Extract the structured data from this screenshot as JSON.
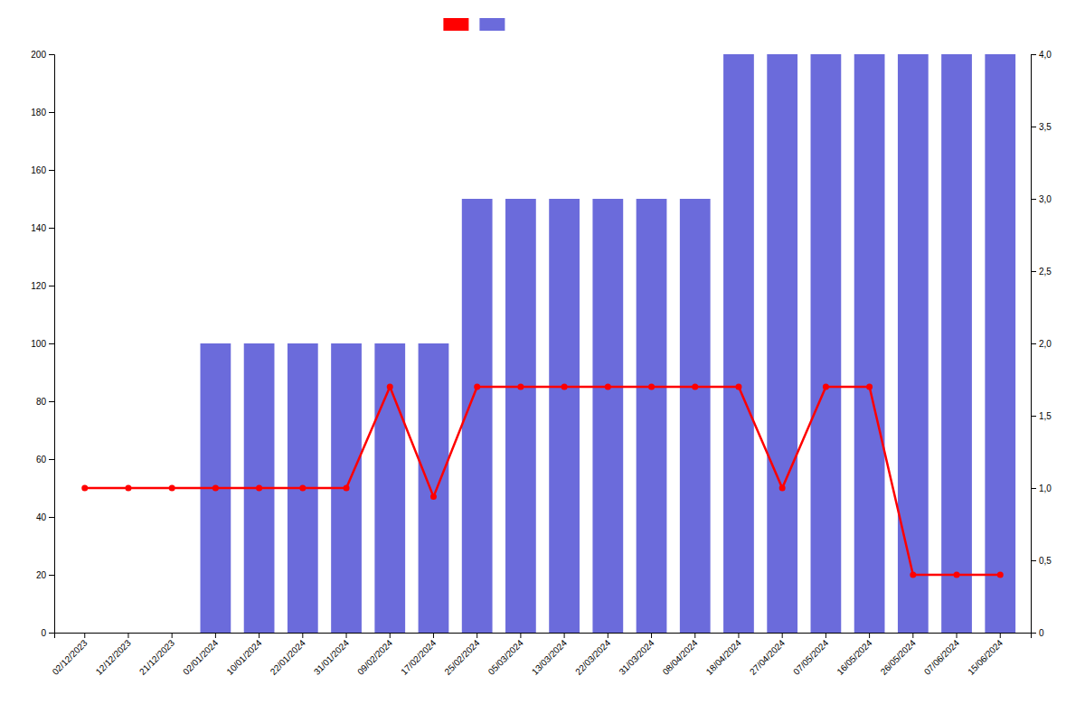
{
  "chart_data": {
    "type": "bar",
    "categories": [
      "02/12/2023",
      "12/12/2023",
      "21/12/2023",
      "02/01/2024",
      "10/01/2024",
      "22/01/2024",
      "31/01/2024",
      "09/02/2024",
      "17/02/2024",
      "25/02/2024",
      "05/03/2024",
      "13/03/2024",
      "22/03/2024",
      "31/03/2024",
      "08/04/2024",
      "18/04/2024",
      "27/04/2024",
      "07/05/2024",
      "16/05/2024",
      "26/05/2024",
      "07/06/2024",
      "15/06/2024"
    ],
    "series": [
      {
        "type": "bar",
        "color": "#6b6bdb",
        "values": [
          0,
          0,
          0,
          100,
          100,
          100,
          100,
          100,
          100,
          150,
          150,
          150,
          150,
          150,
          150,
          200,
          200,
          200,
          200,
          200,
          200,
          200
        ]
      },
      {
        "type": "line",
        "color": "#ff0000",
        "marker": "circle",
        "line_style": "solid",
        "values": [
          50,
          50,
          50,
          50,
          50,
          50,
          50,
          85,
          47,
          85,
          85,
          85,
          85,
          85,
          85,
          85,
          50,
          85,
          85,
          20,
          20,
          20
        ]
      }
    ],
    "ylim": [
      0,
      200
    ],
    "yticks": [
      0,
      20,
      40,
      60,
      80,
      100,
      120,
      140,
      160,
      180,
      200
    ],
    "y2lim": [
      0,
      4.0
    ],
    "y2ticks": [
      0,
      {
        "value": 0.5,
        "label": "0,5"
      },
      {
        "value": 1.0,
        "label": "1,0"
      },
      {
        "value": 1.5,
        "label": "1,5"
      },
      {
        "value": 2.0,
        "label": "2,0"
      },
      {
        "value": 2.5,
        "label": "2,5"
      },
      {
        "value": 3.0,
        "label": "3,0"
      },
      {
        "value": 3.5,
        "label": "3,5"
      },
      {
        "value": 4.0,
        "label": "4,0"
      }
    ],
    "grid": false,
    "legend": "upper center"
  }
}
